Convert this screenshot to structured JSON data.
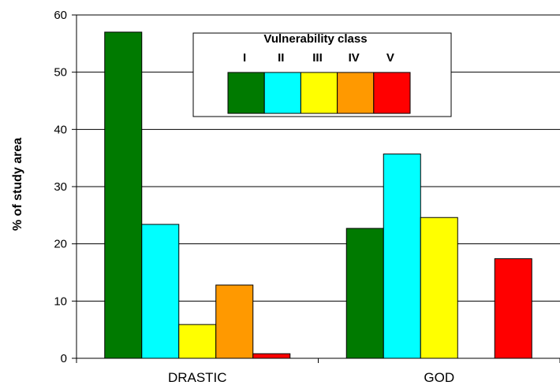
{
  "chart_data": {
    "type": "bar",
    "title": "",
    "xlabel": "",
    "ylabel": "% of study area",
    "ylim": [
      0,
      60
    ],
    "yticks": [
      0,
      10,
      20,
      30,
      40,
      50,
      60
    ],
    "grid": true,
    "categories": [
      "DRASTIC",
      "GOD"
    ],
    "legend": {
      "title": "Vulnerability class",
      "placement": "top-center"
    },
    "series": [
      {
        "name": "I",
        "color": "#007a00",
        "values": [
          57,
          22.7
        ]
      },
      {
        "name": "II",
        "color": "#00ffff",
        "values": [
          23.4,
          35.7
        ]
      },
      {
        "name": "III",
        "color": "#ffff00",
        "values": [
          5.9,
          24.6
        ]
      },
      {
        "name": "IV",
        "color": "#ff9900",
        "values": [
          12.8,
          0
        ]
      },
      {
        "name": "V",
        "color": "#ff0000",
        "values": [
          0.8,
          17.4
        ]
      }
    ]
  }
}
